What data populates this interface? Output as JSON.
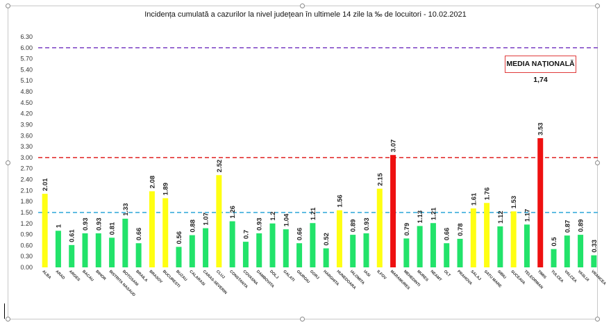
{
  "chart_data": {
    "type": "bar",
    "title": "Incidența cumulată a cazurilor la nivel județean în ultimele 14 zile la ‰ de locuitori - 10.02.2021",
    "annotation": "MEDIA NAȚIONALĂ 1,74",
    "ylim": [
      0,
      6.3
    ],
    "yticks": [
      "0.00",
      "0.30",
      "0.60",
      "0.90",
      "1.20",
      "1.50",
      "1.80",
      "2.10",
      "2.40",
      "2.70",
      "3.00",
      "3.30",
      "3.60",
      "3.90",
      "4.20",
      "4.50",
      "4.80",
      "5.10",
      "5.40",
      "5.70",
      "6.00",
      "6.30"
    ],
    "categories": [
      "ALBA",
      "ARAD",
      "ARGES",
      "BACAU",
      "BIHOR",
      "BISTRITA NASAUD",
      "BOTOSANI",
      "BRAILA",
      "BRASOV",
      "BUCURESTI",
      "BUZAU",
      "CALARASI",
      "CARAS-SEVERIN",
      "CLUJ",
      "CONSTANTA",
      "COVASNA",
      "DAMBOVITA",
      "DOLJ",
      "GALATI",
      "GIURGIU",
      "GORJ",
      "HARGHITA",
      "HUNEDOARA",
      "IALOMITA",
      "IASI",
      "ILFOV",
      "MARAMURES",
      "MEHEDINTI",
      "MURES",
      "NEAMT",
      "OLT",
      "PRAHOVA",
      "SALAJ",
      "SATU MARE",
      "SIBIU",
      "SUCEAVA",
      "TELEORMAN",
      "TIMIS",
      "TULCEA",
      "VALCEA",
      "VASLUI",
      "VRANCEA"
    ],
    "values": [
      2.01,
      1,
      0.61,
      0.93,
      0.93,
      0.81,
      1.33,
      0.66,
      2.08,
      1.89,
      0.56,
      0.88,
      1.07,
      2.52,
      1.26,
      0.7,
      0.93,
      1.2,
      1.04,
      0.66,
      1.21,
      0.52,
      1.56,
      0.89,
      0.93,
      2.15,
      3.07,
      0.79,
      1.13,
      1.21,
      0.66,
      0.78,
      1.61,
      1.76,
      1.12,
      1.53,
      1.17,
      3.53,
      0.5,
      0.87,
      0.89,
      0.33
    ],
    "value_labels": [
      "2.01",
      "1",
      "0.61",
      "0.93",
      "0.93",
      "0.81",
      "1.33",
      "0.66",
      "2.08",
      "1.89",
      "0.56",
      "0.88",
      "1.07",
      "2.52",
      "1.26",
      "0.7",
      "0.93",
      "1.2",
      "1.04",
      "0.66",
      "1.21",
      "0.52",
      "1.56",
      "0.89",
      "0.93",
      "2.15",
      "3.07",
      "0.79",
      "1.13",
      "1.21",
      "0.66",
      "0.78",
      "1.61",
      "1.76",
      "1.12",
      "1.53",
      "1.17",
      "3.53",
      "0.5",
      "0.87",
      "0.89",
      "0.33"
    ],
    "bar_colors": [
      "yellow",
      "green",
      "green",
      "green",
      "green",
      "green",
      "green",
      "green",
      "yellow",
      "yellow",
      "green",
      "green",
      "green",
      "yellow",
      "green",
      "green",
      "green",
      "green",
      "green",
      "green",
      "green",
      "green",
      "yellow",
      "green",
      "green",
      "yellow",
      "red",
      "green",
      "green",
      "green",
      "green",
      "green",
      "yellow",
      "yellow",
      "green",
      "yellow",
      "green",
      "red",
      "green",
      "green",
      "green",
      "green"
    ],
    "palette": {
      "green": "#22e36a",
      "yellow": "#ffff12",
      "red": "#ee1111"
    },
    "reference_lines": [
      {
        "value": 1.5,
        "color": "#2ba6d8"
      },
      {
        "value": 3.0,
        "color": "#e02020"
      },
      {
        "value": 6.0,
        "color": "#7b3fc4"
      }
    ],
    "grid": false,
    "legend": "none"
  }
}
